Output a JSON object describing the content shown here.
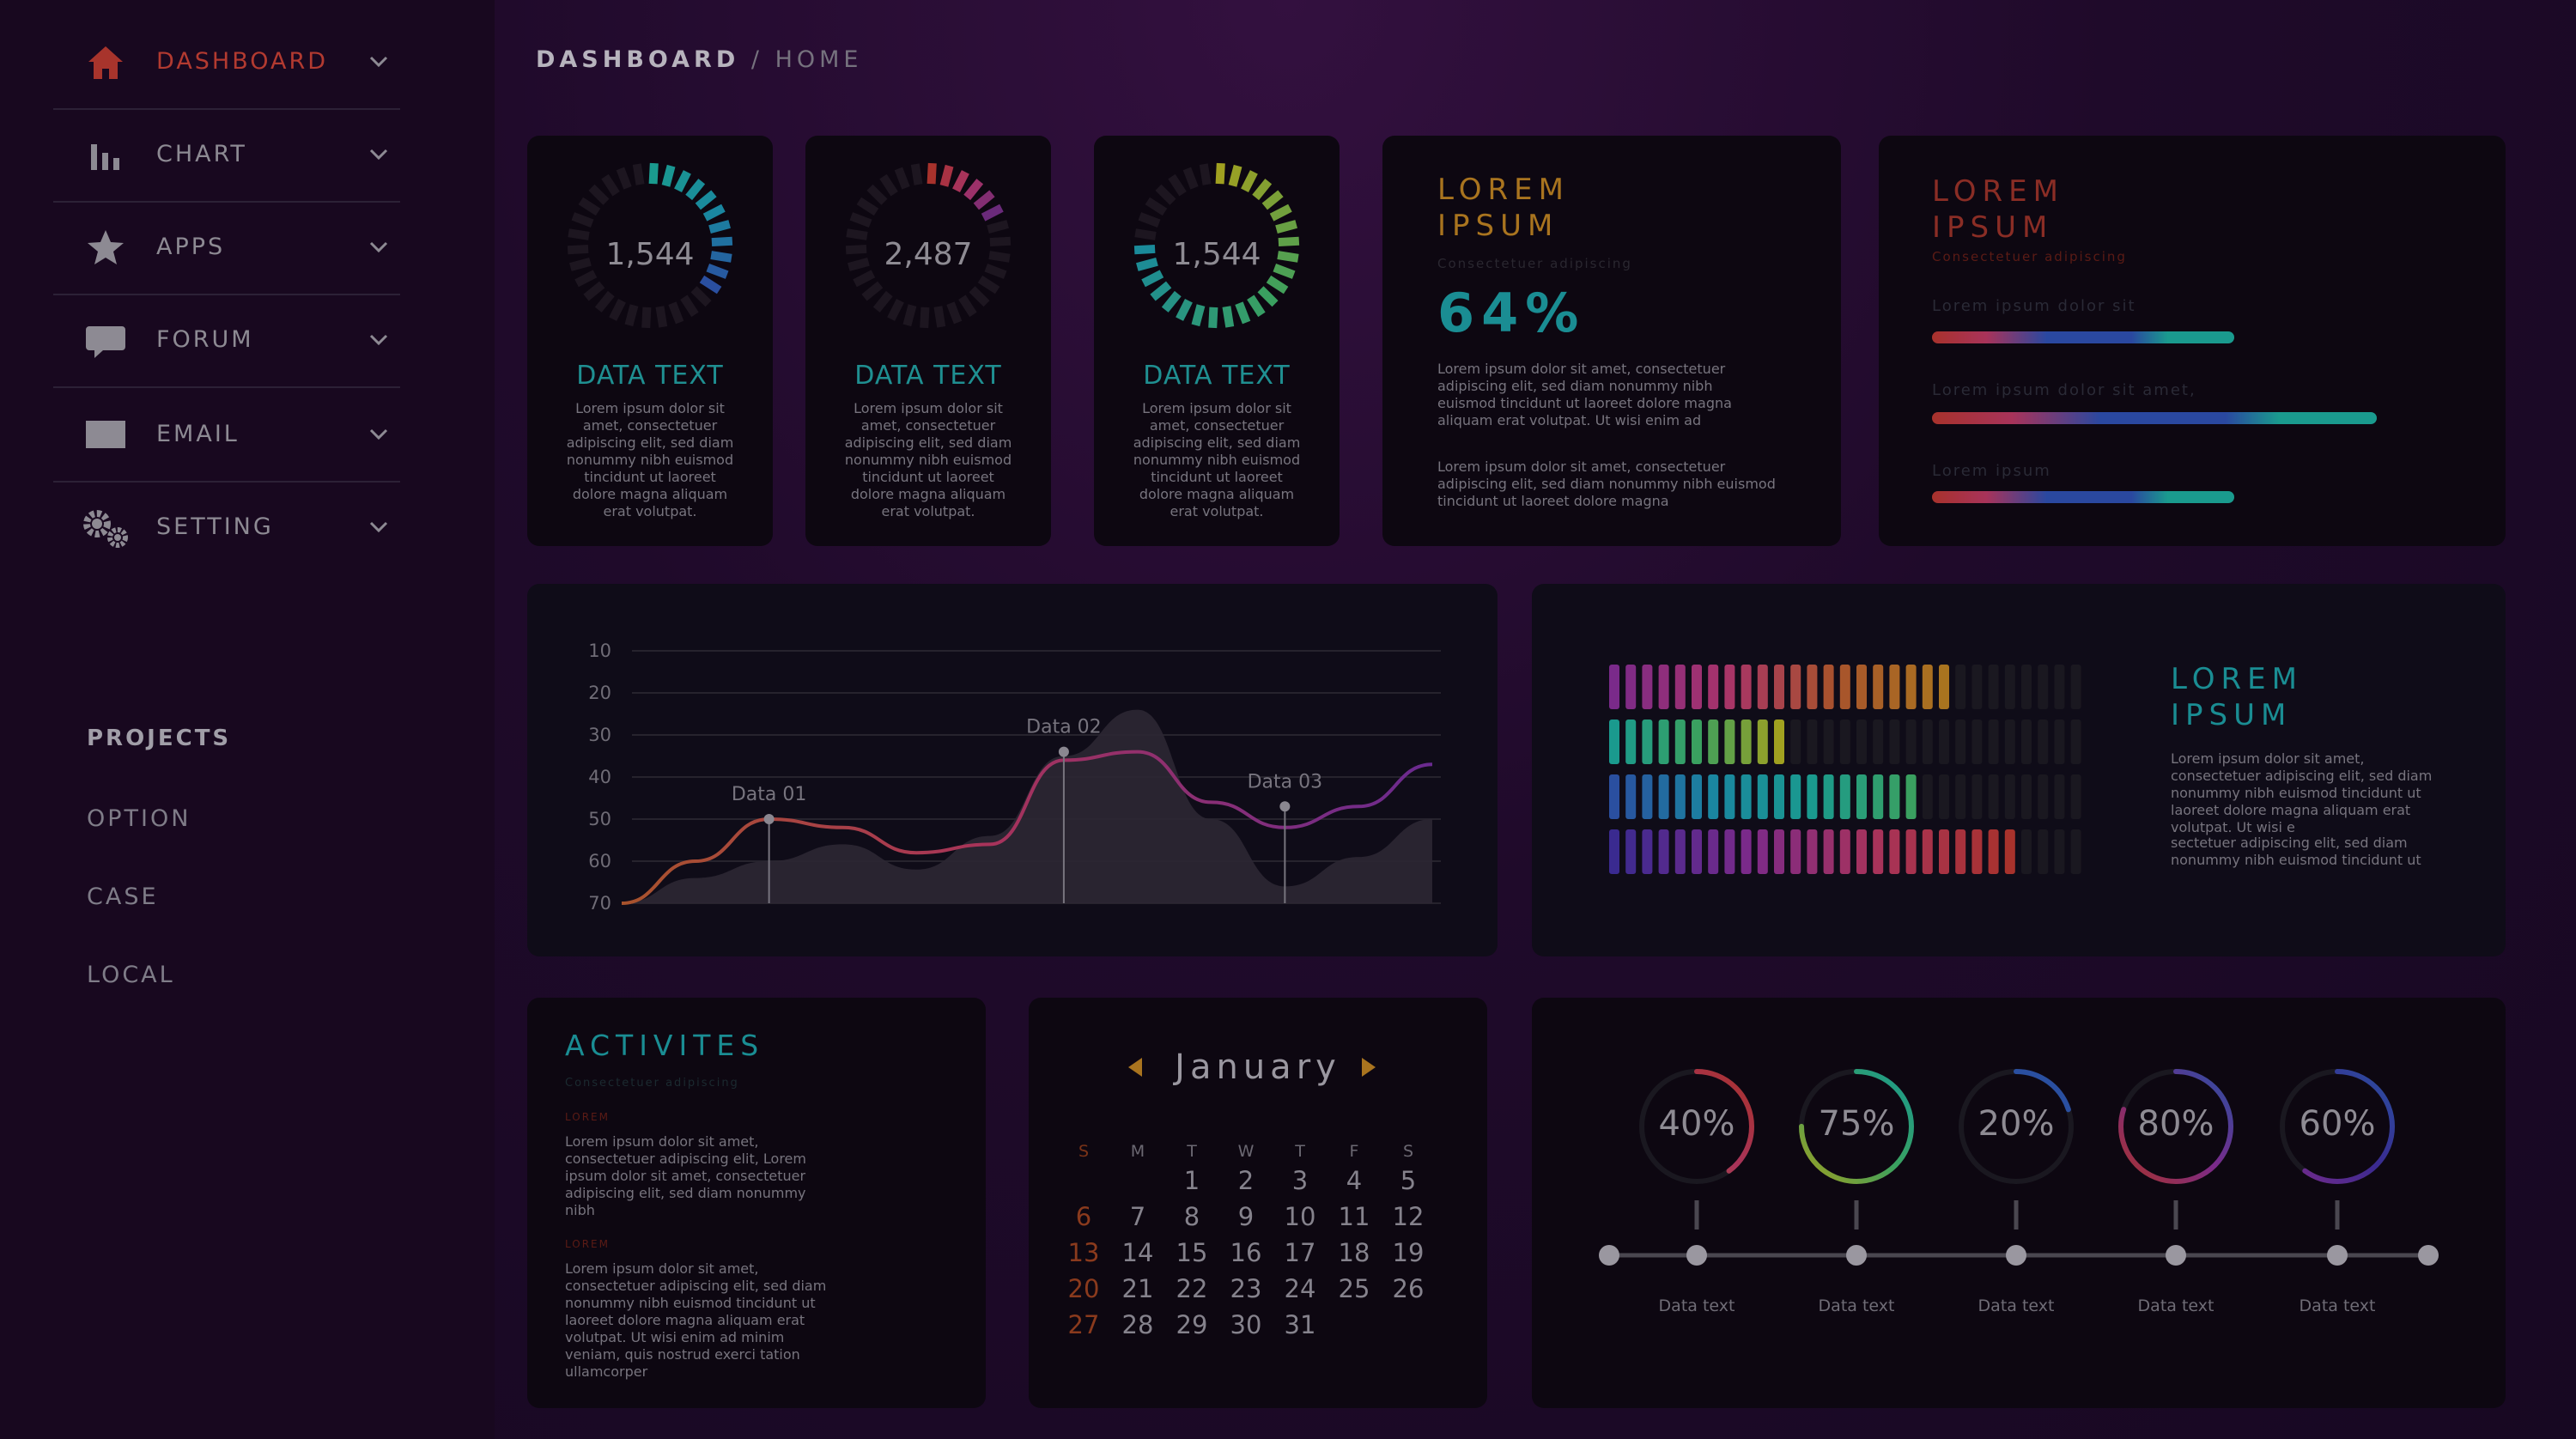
{
  "sidebar": {
    "items": [
      {
        "label": "DASHBOARD",
        "icon": "home-icon",
        "active": true
      },
      {
        "label": "CHART",
        "icon": "bar-chart-icon"
      },
      {
        "label": "APPS",
        "icon": "star-icon"
      },
      {
        "label": "FORUM",
        "icon": "chat-icon"
      },
      {
        "label": "EMAIL",
        "icon": "mail-icon"
      },
      {
        "label": "SETTING",
        "icon": "gear-icon"
      }
    ],
    "projects_heading": "PROJECTS",
    "projects": [
      "OPTION",
      "CASE",
      "LOCAL"
    ]
  },
  "header": {
    "crumb_main": "DASHBOARD",
    "crumb_sep": "/",
    "crumb_sub": "HOME"
  },
  "gauges": [
    {
      "value": "1,544",
      "title": "DATA TEXT",
      "fill": 0.35,
      "color": "teal",
      "text": "Lorem ipsum dolor sit amet, consectetuer adipiscing elit, sed diam nonummy nibh euismod tincidunt ut laoreet dolore magna aliquam erat volutpat."
    },
    {
      "value": "2,487",
      "title": "DATA TEXT",
      "fill": 0.2,
      "color": "pink",
      "text": "Lorem ipsum dolor sit amet, consectetuer adipiscing elit, sed diam nonummy nibh euismod tincidunt ut laoreet dolore magna aliquam erat volutpat."
    },
    {
      "value": "1,544",
      "title": "DATA TEXT",
      "fill": 0.75,
      "color": "green",
      "text": "Lorem ipsum dolor sit amet, consectetuer adipiscing elit, sed diam nonummy nibh euismod tincidunt ut laoreet dolore magna aliquam erat volutpat."
    }
  ],
  "stat_card": {
    "title_line1": "LOREM",
    "title_line2": "IPSUM",
    "subtitle": "Consectetuer adipiscing",
    "percent": "64%",
    "para1": "Lorem ipsum dolor sit amet, consectetuer adipiscing elit, sed diam nonummy nibh euismod tincidunt ut laoreet dolore magna aliquam erat volutpat. Ut wisi enim ad",
    "para2": "Lorem ipsum dolor sit amet, consectetuer adipiscing elit, sed diam nonummy nibh euismod tincidunt ut laoreet dolore magna"
  },
  "bars_card": {
    "title_line1": "LOREM",
    "title_line2": "IPSUM",
    "subtitle": "Consectetuer adipiscing",
    "bars": [
      {
        "label": "Lorem ipsum dolor sit",
        "value": 0.68
      },
      {
        "label": "Lorem ipsum dolor sit amet,",
        "value": 1.0
      },
      {
        "label": "Lorem ipsum",
        "value": 0.68
      }
    ]
  },
  "chart_data": {
    "type": "line",
    "y_tick_labels": [
      "10",
      "20",
      "30",
      "40",
      "50",
      "60",
      "70"
    ],
    "series": [
      {
        "values": [
          70,
          60,
          50,
          52,
          58,
          56,
          36,
          34,
          46,
          52,
          47,
          37
        ]
      },
      {
        "values": [
          70,
          64,
          60,
          56,
          62,
          54,
          35,
          24,
          50,
          66,
          59,
          50
        ]
      }
    ],
    "annotations": [
      {
        "label": "Data 01",
        "value": 50
      },
      {
        "label": "Data 02",
        "value": 34
      },
      {
        "label": "Data 03",
        "value": 47
      }
    ]
  },
  "matrix_card": {
    "title_line1": "LOREM",
    "title_line2": "IPSUM",
    "para1": "Lorem ipsum dolor sit amet, consectetuer adipiscing elit, sed diam nonummy nibh euismod tincidunt ut laoreet dolore magna aliquam erat volutpat. Ut wisi e",
    "para2": "sectetuer adipiscing elit, sed diam nonummy nibh euismod tincidunt ut",
    "rows": [
      {
        "lit": 21,
        "total": 29
      },
      {
        "lit": 11,
        "total": 29
      },
      {
        "lit": 19,
        "total": 29
      },
      {
        "lit": 25,
        "total": 29
      }
    ]
  },
  "activities": {
    "title": "ACTIVITES",
    "subtitle": "Consectetuer adipiscing",
    "tag1": "LOREM",
    "para1": "Lorem ipsum dolor sit amet, consectetuer adipiscing elit, Lorem ipsum dolor sit amet, consectetuer adipiscing elit, sed diam nonummy nibh",
    "tag2": "LOREM",
    "para2": "Lorem ipsum dolor sit amet, consectetuer adipiscing elit, sed diam nonummy nibh euismod tincidunt ut laoreet dolore magna aliquam erat volutpat. Ut wisi enim ad minim veniam, quis nostrud exerci tation ullamcorper"
  },
  "calendar": {
    "month": "January",
    "weekdays": [
      "S",
      "M",
      "T",
      "W",
      "T",
      "F",
      "S"
    ],
    "weeks": [
      [
        "",
        "",
        "1",
        "2",
        "3",
        "4",
        "5"
      ],
      [
        "6",
        "7",
        "8",
        "9",
        "10",
        "11",
        "12"
      ],
      [
        "13",
        "14",
        "15",
        "16",
        "17",
        "18",
        "19"
      ],
      [
        "20",
        "21",
        "22",
        "23",
        "24",
        "25",
        "26"
      ],
      [
        "27",
        "28",
        "29",
        "30",
        "31",
        "",
        ""
      ]
    ]
  },
  "progress_rings": [
    {
      "label": "40%",
      "value": 0.4,
      "caption": "Data text"
    },
    {
      "label": "75%",
      "value": 0.75,
      "caption": "Data text"
    },
    {
      "label": "20%",
      "value": 0.2,
      "caption": "Data text"
    },
    {
      "label": "80%",
      "value": 0.8,
      "caption": "Data text"
    },
    {
      "label": "60%",
      "value": 0.6,
      "caption": "Data text"
    }
  ],
  "colors": {
    "teal": "#1f8f91",
    "orange": "#a9741f",
    "red": "#b23a30",
    "muted": "#8a8a93"
  }
}
